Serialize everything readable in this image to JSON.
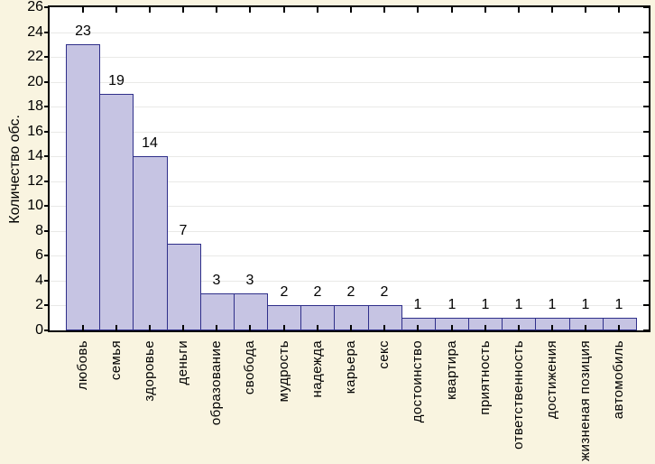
{
  "chart_data": {
    "type": "bar",
    "title": "",
    "xlabel": "",
    "ylabel": "Количество обс.",
    "categories": [
      "любовь",
      "семья",
      "здоровье",
      "деньги",
      "образование",
      "свобода",
      "мудрость",
      "надежда",
      "карьера",
      "секс",
      "достоинство",
      "квартира",
      "приятность",
      "ответственность",
      "достижения",
      "жизненая позиция",
      "автомобиль"
    ],
    "values": [
      23,
      19,
      14,
      7,
      3,
      3,
      2,
      2,
      2,
      2,
      1,
      1,
      1,
      1,
      1,
      1,
      1
    ],
    "bar_value_labels": [
      "23",
      "19",
      "14",
      "7",
      "3",
      "3",
      "2",
      "2",
      "2",
      "2",
      "1",
      "1",
      "1",
      "1",
      "1",
      "1",
      "1"
    ],
    "ylim": [
      0,
      26
    ],
    "yticks": [
      0,
      2,
      4,
      6,
      8,
      10,
      12,
      14,
      16,
      18,
      20,
      22,
      24,
      26
    ],
    "grid": "horizontal",
    "legend": "none",
    "x_label_rotation": "90deg-bottom-to-top",
    "colors": {
      "background": "#f9f4e0",
      "plot_background": "#ffffff",
      "bar_fill": "#c6c4e3",
      "bar_border": "#2f2f8a",
      "gridline": "#e9e9e7",
      "frame": "#000000",
      "text": "#000000"
    }
  }
}
